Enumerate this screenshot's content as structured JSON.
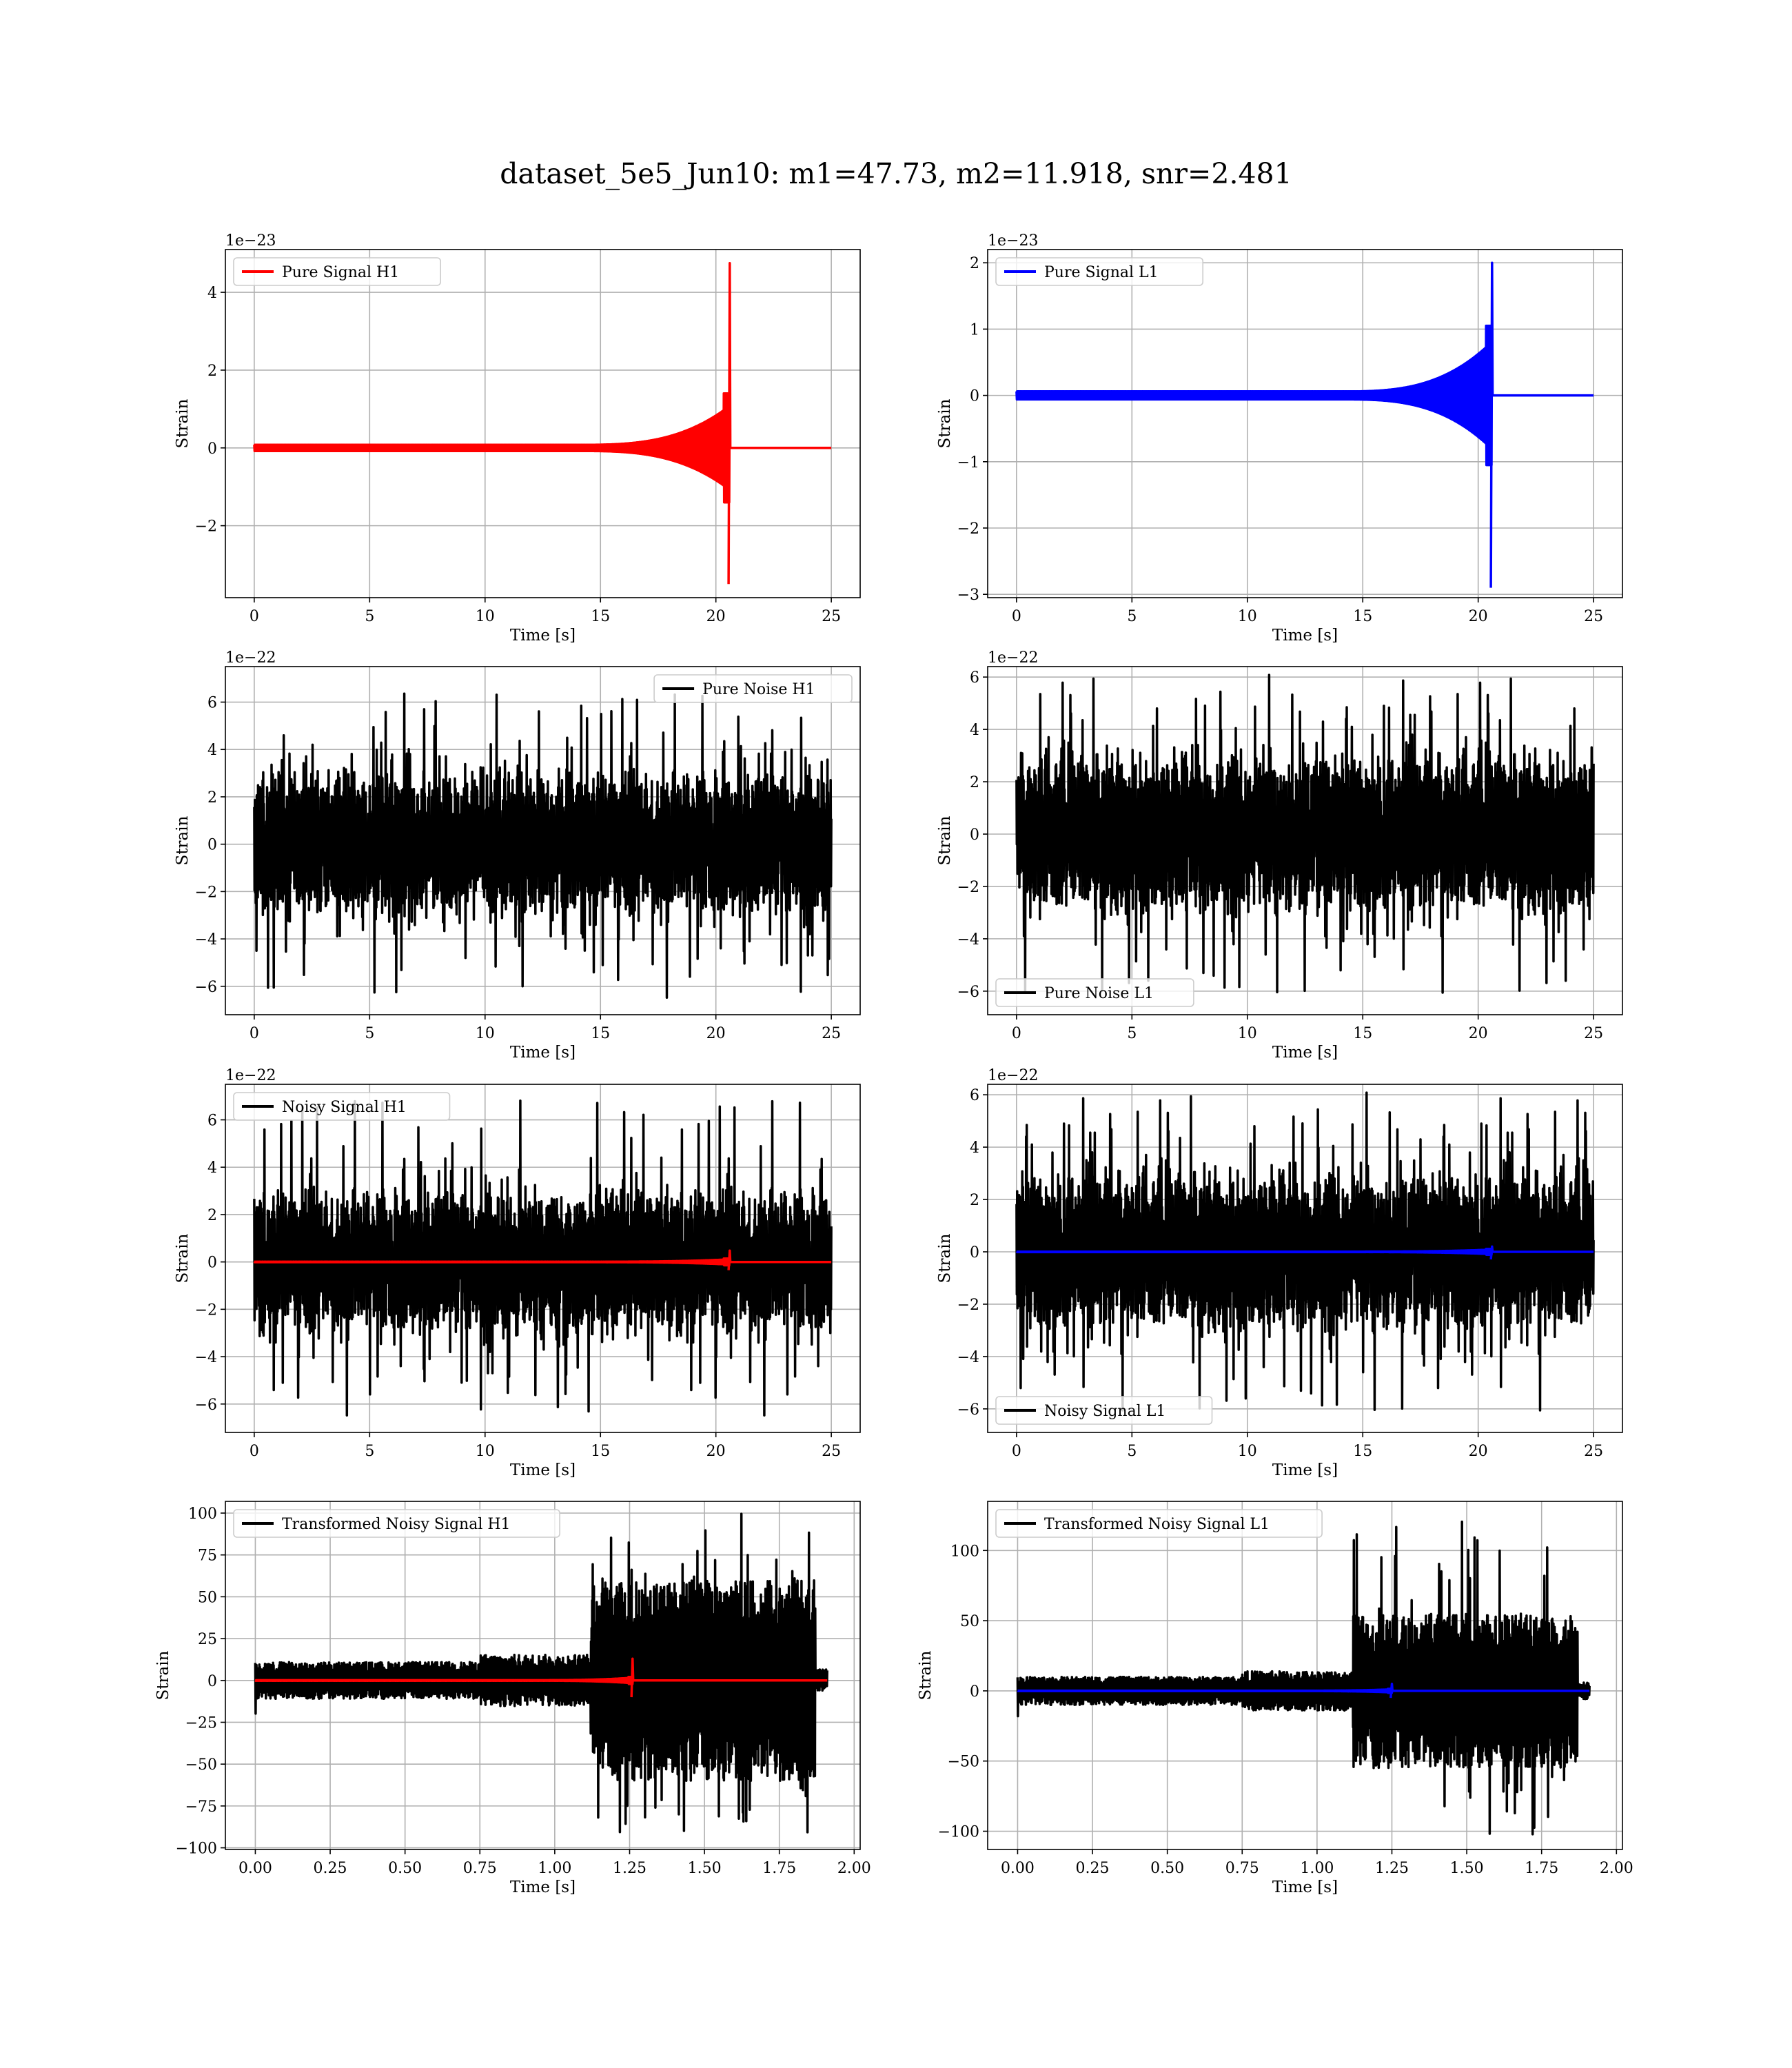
{
  "figure": {
    "title": "dataset_5e5_Jun10: m1=47.73, m2=11.918, snr=2.481"
  },
  "colors": {
    "h1_signal": "#ff0000",
    "l1_signal": "#0000ff",
    "noise": "#000000",
    "grid": "#b0b0b0"
  },
  "chart_data": [
    {
      "id": "pure-signal-h1",
      "type": "line",
      "xlabel": "Time [s]",
      "ylabel": "Strain",
      "offset_text": "1e−23",
      "xlim": [
        -1.25,
        26.25
      ],
      "ylim": [
        -3.85,
        5.1
      ],
      "xticks": [
        0,
        5,
        10,
        15,
        20,
        25
      ],
      "xtick_labels": [
        "0",
        "5",
        "10",
        "15",
        "20",
        "25"
      ],
      "yticks": [
        -2,
        0,
        2,
        4
      ],
      "ytick_labels": [
        "−2",
        "0",
        "2",
        "4"
      ],
      "grid": true,
      "legend_position": "upper left",
      "series": [
        {
          "name": "Pure Signal H1",
          "color": "#ff0000",
          "kind": "chirp",
          "x_range": [
            0,
            25
          ],
          "merger": 20.6,
          "peak_pos": 4.75,
          "peak_neg": -3.5,
          "pre_amp": 1.0,
          "inspiral_start": 14
        }
      ]
    },
    {
      "id": "pure-signal-l1",
      "type": "line",
      "xlabel": "Time [s]",
      "ylabel": "Strain",
      "offset_text": "1e−23",
      "xlim": [
        -1.25,
        26.25
      ],
      "ylim": [
        -3.05,
        2.2
      ],
      "xticks": [
        0,
        5,
        10,
        15,
        20,
        25
      ],
      "xtick_labels": [
        "0",
        "5",
        "10",
        "15",
        "20",
        "25"
      ],
      "yticks": [
        -3,
        -2,
        -1,
        0,
        1,
        2
      ],
      "ytick_labels": [
        "−3",
        "−2",
        "−1",
        "0",
        "1",
        "2"
      ],
      "grid": true,
      "legend_position": "upper left",
      "series": [
        {
          "name": "Pure Signal L1",
          "color": "#0000ff",
          "kind": "chirp",
          "x_range": [
            0,
            25
          ],
          "merger": 20.6,
          "peak_pos": 2.0,
          "peak_neg": -2.9,
          "pre_amp": 0.75,
          "inspiral_start": 14
        }
      ]
    },
    {
      "id": "pure-noise-h1",
      "type": "line",
      "xlabel": "Time [s]",
      "ylabel": "Strain",
      "offset_text": "1e−22",
      "xlim": [
        -1.25,
        26.25
      ],
      "ylim": [
        -7.2,
        7.5
      ],
      "xticks": [
        0,
        5,
        10,
        15,
        20,
        25
      ],
      "xtick_labels": [
        "0",
        "5",
        "10",
        "15",
        "20",
        "25"
      ],
      "yticks": [
        -6,
        -4,
        -2,
        0,
        2,
        4,
        6
      ],
      "ytick_labels": [
        "−6",
        "−4",
        "−2",
        "0",
        "2",
        "4",
        "6"
      ],
      "grid": true,
      "legend_position": "upper right",
      "series": [
        {
          "name": "Pure Noise H1",
          "color": "#000000",
          "kind": "noise",
          "x_range": [
            0,
            25
          ],
          "band": 3.7,
          "spike_max": 6.5,
          "spike_min": -6.5
        }
      ]
    },
    {
      "id": "pure-noise-l1",
      "type": "line",
      "xlabel": "Time [s]",
      "ylabel": "Strain",
      "offset_text": "1e−22",
      "xlim": [
        -1.25,
        26.25
      ],
      "ylim": [
        -6.9,
        6.4
      ],
      "xticks": [
        0,
        5,
        10,
        15,
        20,
        25
      ],
      "xtick_labels": [
        "0",
        "5",
        "10",
        "15",
        "20",
        "25"
      ],
      "yticks": [
        -6,
        -4,
        -2,
        0,
        2,
        4,
        6
      ],
      "ytick_labels": [
        "−6",
        "−4",
        "−2",
        "0",
        "2",
        "4",
        "6"
      ],
      "grid": true,
      "legend_position": "lower left",
      "series": [
        {
          "name": "Pure Noise L1",
          "color": "#000000",
          "kind": "noise",
          "x_range": [
            0,
            25
          ],
          "band": 3.7,
          "spike_max": 6.1,
          "spike_min": -6.2
        }
      ]
    },
    {
      "id": "noisy-signal-h1",
      "type": "line",
      "xlabel": "Time [s]",
      "ylabel": "Strain",
      "offset_text": "1e−22",
      "xlim": [
        -1.25,
        26.25
      ],
      "ylim": [
        -7.2,
        7.5
      ],
      "xticks": [
        0,
        5,
        10,
        15,
        20,
        25
      ],
      "xtick_labels": [
        "0",
        "5",
        "10",
        "15",
        "20",
        "25"
      ],
      "yticks": [
        -6,
        -4,
        -2,
        0,
        2,
        4,
        6
      ],
      "ytick_labels": [
        "−6",
        "−4",
        "−2",
        "0",
        "2",
        "4",
        "6"
      ],
      "grid": true,
      "legend_position": "upper left",
      "series": [
        {
          "name": "Noisy Signal H1",
          "color": "#000000",
          "kind": "noise",
          "x_range": [
            0,
            25
          ],
          "band": 3.7,
          "spike_max": 7.0,
          "spike_min": -6.5
        },
        {
          "color": "#ff0000",
          "kind": "chirp",
          "x_range": [
            0,
            25
          ],
          "merger": 20.6,
          "peak_pos": 0.48,
          "peak_neg": -0.35,
          "pre_amp": 0.1,
          "inspiral_start": 14
        }
      ]
    },
    {
      "id": "noisy-signal-l1",
      "type": "line",
      "xlabel": "Time [s]",
      "ylabel": "Strain",
      "offset_text": "1e−22",
      "xlim": [
        -1.25,
        26.25
      ],
      "ylim": [
        -6.9,
        6.4
      ],
      "xticks": [
        0,
        5,
        10,
        15,
        20,
        25
      ],
      "xtick_labels": [
        "0",
        "5",
        "10",
        "15",
        "20",
        "25"
      ],
      "yticks": [
        -6,
        -4,
        -2,
        0,
        2,
        4,
        6
      ],
      "ytick_labels": [
        "−6",
        "−4",
        "−2",
        "0",
        "2",
        "4",
        "6"
      ],
      "grid": true,
      "legend_position": "lower left",
      "series": [
        {
          "name": "Noisy Signal L1",
          "color": "#000000",
          "kind": "noise",
          "x_range": [
            0,
            25
          ],
          "band": 3.7,
          "spike_max": 6.1,
          "spike_min": -6.2
        },
        {
          "color": "#0000ff",
          "kind": "chirp",
          "x_range": [
            0,
            25
          ],
          "merger": 20.6,
          "peak_pos": 0.2,
          "peak_neg": -0.29,
          "pre_amp": 0.08,
          "inspiral_start": 14
        }
      ]
    },
    {
      "id": "transformed-noisy-signal-h1",
      "type": "line",
      "xlabel": "Time [s]",
      "ylabel": "Strain",
      "offset_text": "",
      "xlim": [
        -0.1,
        2.02
      ],
      "ylim": [
        -101,
        107
      ],
      "xticks": [
        0,
        0.25,
        0.5,
        0.75,
        1.0,
        1.25,
        1.5,
        1.75,
        2.0
      ],
      "xtick_labels": [
        "0.00",
        "0.25",
        "0.50",
        "0.75",
        "1.00",
        "1.25",
        "1.50",
        "1.75",
        "2.00"
      ],
      "yticks": [
        -100,
        -75,
        -50,
        -25,
        0,
        25,
        50,
        75,
        100
      ],
      "ytick_labels": [
        "−100",
        "−75",
        "−50",
        "−25",
        "0",
        "25",
        "50",
        "75",
        "100"
      ],
      "grid": true,
      "legend_position": "upper left",
      "series": [
        {
          "name": "Transformed Noisy Signal H1",
          "color": "#000000",
          "kind": "whitened",
          "x_range": [
            0,
            1.91
          ],
          "low_amp": 11,
          "high_amp": 60,
          "jump_at": 1.12,
          "end_at": 1.87,
          "spike_max": 100,
          "spike_min": -92
        },
        {
          "color": "#ff0000",
          "kind": "chirp",
          "x_range": [
            0,
            1.91
          ],
          "merger": 1.26,
          "peak_pos": 13,
          "peak_neg": -10,
          "pre_amp": 1.5,
          "inspiral_start": 0.9
        }
      ]
    },
    {
      "id": "transformed-noisy-signal-l1",
      "type": "line",
      "xlabel": "Time [s]",
      "ylabel": "Strain",
      "offset_text": "",
      "xlim": [
        -0.1,
        2.02
      ],
      "ylim": [
        -113,
        135
      ],
      "xticks": [
        0,
        0.25,
        0.5,
        0.75,
        1.0,
        1.25,
        1.5,
        1.75,
        2.0
      ],
      "xtick_labels": [
        "0.00",
        "0.25",
        "0.50",
        "0.75",
        "1.00",
        "1.25",
        "1.50",
        "1.75",
        "2.00"
      ],
      "yticks": [
        -100,
        -50,
        0,
        50,
        100
      ],
      "ytick_labels": [
        "−100",
        "−50",
        "0",
        "50",
        "100"
      ],
      "grid": true,
      "legend_position": "upper left",
      "series": [
        {
          "name": "Transformed Noisy Signal L1",
          "color": "#000000",
          "kind": "whitened",
          "x_range": [
            0,
            1.91
          ],
          "low_amp": 10,
          "high_amp": 55,
          "jump_at": 1.12,
          "end_at": 1.87,
          "spike_max": 121,
          "spike_min": -105
        },
        {
          "color": "#0000ff",
          "kind": "chirp",
          "x_range": [
            0,
            1.91
          ],
          "merger": 1.25,
          "peak_pos": 5,
          "peak_neg": -5,
          "pre_amp": 1.0,
          "inspiral_start": 0.9
        }
      ]
    }
  ]
}
